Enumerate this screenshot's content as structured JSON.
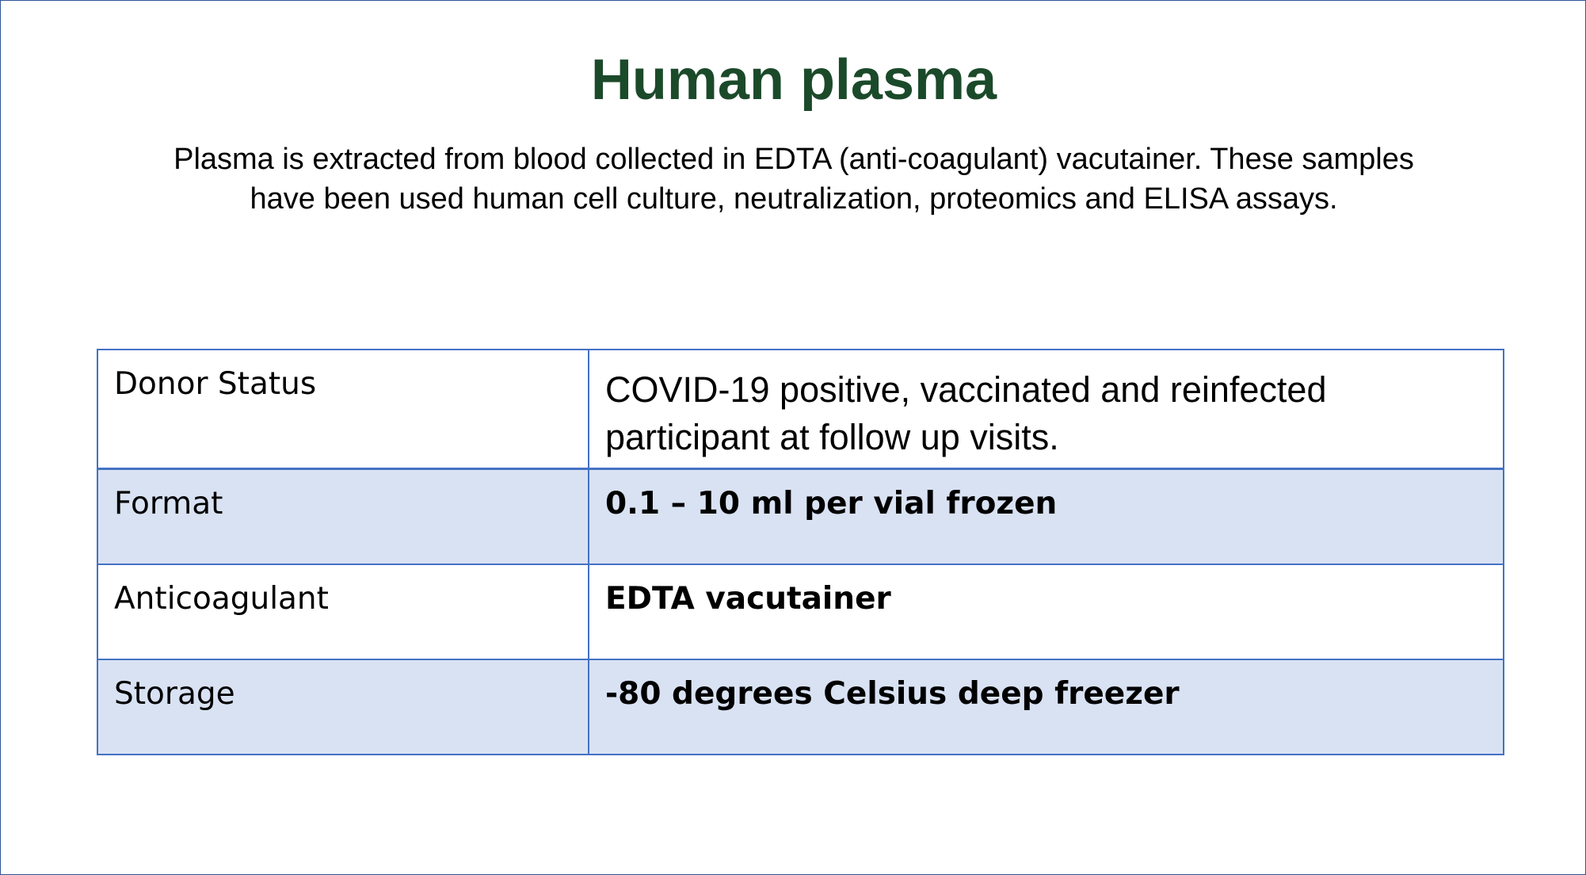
{
  "slide": {
    "title": "Human plasma",
    "description": "Plasma is extracted from blood collected in EDTA (anti-coagulant) vacutainer. These samples have been used  human cell culture, neutralization, proteomics and ELISA assays."
  },
  "table": {
    "rows": [
      {
        "label": "Donor Status",
        "value": "COVID-19 positive, vaccinated and reinfected participant at follow up visits."
      },
      {
        "label": "Format",
        "value": "0.1 – 10 ml per vial frozen"
      },
      {
        "label": "Anticoagulant",
        "value": "EDTA vacutainer"
      },
      {
        "label": "Storage",
        "value": "-80 degrees Celsius deep freezer"
      }
    ]
  },
  "colors": {
    "title": "#1b4a2a",
    "table_border": "#4472c4",
    "band_fill": "#d9e2f3",
    "slide_border": "#2f5597"
  }
}
